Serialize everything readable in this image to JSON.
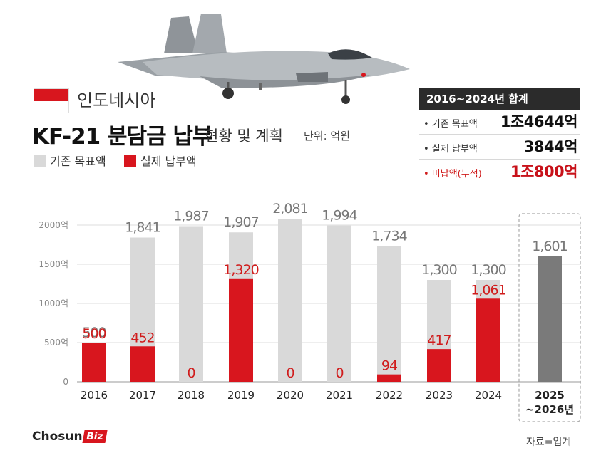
{
  "header": {
    "country": "인도네시아",
    "title_main": "KF-21 분담금 납부",
    "title_sub": "현황 및 계획",
    "unit": "단위: 억원",
    "legend_target": "기존 목표액",
    "legend_actual": "실제 납부액"
  },
  "summary": {
    "title": "2016~2024년 합계",
    "rows": [
      {
        "label": "• 기존 목표액",
        "value": "1조4644억"
      },
      {
        "label": "• 실제 납부액",
        "value": "3844억"
      },
      {
        "label": "• 미납액(누적)",
        "value": "1조800억"
      }
    ]
  },
  "colors": {
    "target": "#d9d9d9",
    "actual": "#d8161e",
    "plan": "#7a7a7a",
    "flag_red": "#d8161e"
  },
  "icons": {
    "logo": "chosun-biz-logo",
    "jet": "kf21-jet-image",
    "flag": "indonesia-flag-icon"
  },
  "chart_data": {
    "type": "bar",
    "categories": [
      "2016",
      "2017",
      "2018",
      "2019",
      "2020",
      "2021",
      "2022",
      "2023",
      "2024",
      "2025\n~2026년"
    ],
    "series": [
      {
        "name": "기존 목표액",
        "values": [
          500,
          1841,
          1987,
          1907,
          2081,
          1994,
          1734,
          1300,
          1300,
          1601
        ]
      },
      {
        "name": "실제 납부액",
        "values": [
          500,
          452,
          0,
          1320,
          0,
          0,
          94,
          417,
          1061,
          null
        ]
      }
    ],
    "target_labels": [
      "500",
      "1,841",
      "1,987",
      "1,907",
      "2,081",
      "1,994",
      "1,734",
      "1,300",
      "1,300",
      "1,601"
    ],
    "actual_labels": [
      "500",
      "452",
      "0",
      "1,320",
      "0",
      "0",
      "94",
      "417",
      "1,061",
      ""
    ],
    "y_ticks": [
      0,
      500,
      1000,
      1500,
      2000
    ],
    "y_tick_labels": [
      "0",
      "500억",
      "1000억",
      "1500억",
      "2000억"
    ],
    "ylim": [
      0,
      2000
    ],
    "grid": true,
    "legend_position": "top-left"
  },
  "footer": {
    "logo_text": "Chosun",
    "logo_badge": "Biz",
    "source": "자료=업계"
  }
}
